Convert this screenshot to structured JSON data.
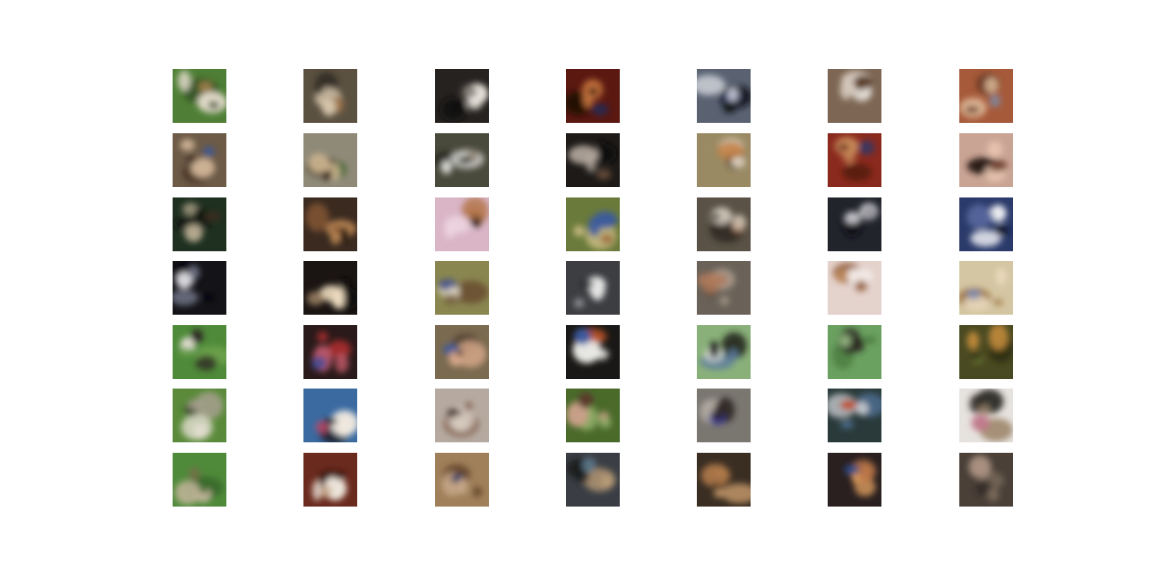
{
  "grid": {
    "rows": 7,
    "cols": 7,
    "samples": [
      [
        {
          "bg": "#4f7f36",
          "c1": "#e7ddd0",
          "c2": "#a9814d",
          "c3": "#2f4a24"
        },
        {
          "bg": "#5b5141",
          "c1": "#d8c7ad",
          "c2": "#9a7047",
          "c3": "#2d271f"
        },
        {
          "bg": "#262220",
          "c1": "#e8e4dc",
          "c2": "#6f6a62",
          "c3": "#0f0d0c"
        },
        {
          "bg": "#5a1810",
          "c1": "#c8773f",
          "c2": "#1e2c5a",
          "c3": "#1b0806"
        },
        {
          "bg": "#5a6272",
          "c1": "#d9dce2",
          "c2": "#2a3f7a",
          "c3": "#111318"
        },
        {
          "bg": "#7d6653",
          "c1": "#d5c9bd",
          "c2": "#5a3a22",
          "c3": "#e6e1da"
        },
        {
          "bg": "#a65a3a",
          "c1": "#e4c5a3",
          "c2": "#7a8fb0",
          "c3": "#6a3a22"
        }
      ],
      [
        {
          "bg": "#6d5a47",
          "c1": "#cfb597",
          "c2": "#3c5a9a",
          "c3": "#4a3626"
        },
        {
          "bg": "#8f8a78",
          "c1": "#d9bf98",
          "c2": "#4a6a3a",
          "c3": "#3a2b1e"
        },
        {
          "bg": "#4a4a3c",
          "c1": "#e9e9e6",
          "c2": "#8b8070",
          "c3": "#2a2a22"
        },
        {
          "bg": "#1d1a18",
          "c1": "#b6aaa0",
          "c2": "#6b4f3c",
          "c3": "#0c0b0a"
        },
        {
          "bg": "#9a8a64",
          "c1": "#c07a3a",
          "c2": "#3a2418",
          "c3": "#d8d0c0"
        },
        {
          "bg": "#8a2a1e",
          "c1": "#c88b5a",
          "c2": "#2a3a70",
          "c3": "#5a1a10"
        },
        {
          "bg": "#c9a394",
          "c1": "#eac6b2",
          "c2": "#6a3a2a",
          "c3": "#2a1a14"
        }
      ],
      [
        {
          "bg": "#1f3020",
          "c1": "#b4a88f",
          "c2": "#3a2a1e",
          "c3": "#0e160e"
        },
        {
          "bg": "#3a2a20",
          "c1": "#c08a56",
          "c2": "#1c1410",
          "c3": "#8a5a34"
        },
        {
          "bg": "#d9b5c6",
          "c1": "#f0d8e4",
          "c2": "#1c1410",
          "c3": "#b07040"
        },
        {
          "bg": "#6a7a3a",
          "c1": "#3a5aa0",
          "c2": "#a06a3a",
          "c3": "#d0c08a"
        },
        {
          "bg": "#5a5246",
          "c1": "#e2d8ca",
          "c2": "#7a4a2a",
          "c3": "#2a261e"
        },
        {
          "bg": "#22242c",
          "c1": "#d8d8dc",
          "c2": "#8a8a90",
          "c3": "#101118"
        },
        {
          "bg": "#2a3a6a",
          "c1": "#eceef2",
          "c2": "#0e1430",
          "c3": "#5a6aa0"
        }
      ],
      [
        {
          "bg": "#141418",
          "c1": "#7a7e92",
          "c2": "#e0e0e6",
          "c3": "#050508"
        },
        {
          "bg": "#1a1412",
          "c1": "#eddcbf",
          "c2": "#a88a6a",
          "c3": "#0c0908"
        },
        {
          "bg": "#8a8650",
          "c1": "#e4dcc8",
          "c2": "#3a4a8a",
          "c3": "#6a5030"
        },
        {
          "bg": "#3c3e42",
          "c1": "#e6e6e6",
          "c2": "#8a8c90",
          "c3": "#1a1c1e"
        },
        {
          "bg": "#6a6258",
          "c1": "#b07a5a",
          "c2": "#4a3a2e",
          "c3": "#a89a8c"
        },
        {
          "bg": "#e4d2cc",
          "c1": "#f2e8e4",
          "c2": "#c08a5a",
          "c3": "#9a6a4a"
        },
        {
          "bg": "#d4c6a2",
          "c1": "#ecdcc0",
          "c2": "#7a8ab0",
          "c3": "#a07a4a"
        }
      ],
      [
        {
          "bg": "#4f8a3a",
          "c1": "#2a2420",
          "c2": "#e4e0d6",
          "c3": "#6aa04a"
        },
        {
          "bg": "#2a1a1a",
          "c1": "#c05a6a",
          "c2": "#3a4a9a",
          "c3": "#a02a2a"
        },
        {
          "bg": "#7a6a50",
          "c1": "#d8a88a",
          "c2": "#3a5aa0",
          "c3": "#4a3a2a"
        },
        {
          "bg": "#1a1816",
          "c1": "#ecece8",
          "c2": "#3a5aa0",
          "c3": "#c0562a"
        },
        {
          "bg": "#8ab07a",
          "c1": "#1e1c1a",
          "c2": "#e8e8e4",
          "c3": "#5a7aa0"
        },
        {
          "bg": "#6aa060",
          "c1": "#2a2420",
          "c2": "#a0c08a",
          "c3": "#4a7a40"
        },
        {
          "bg": "#4a4a22",
          "c1": "#c08a3a",
          "c2": "#6a7a30",
          "c3": "#2a2a14"
        }
      ],
      [
        {
          "bg": "#5a8a3a",
          "c1": "#e6e0d4",
          "c2": "#2a2622",
          "c3": "#a8a090"
        },
        {
          "bg": "#3a6aa0",
          "c1": "#f0e8e0",
          "c2": "#c04a6a",
          "c3": "#1a1a1e"
        },
        {
          "bg": "#b6aaa0",
          "c1": "#d8ccc2",
          "c2": "#3a2620",
          "c3": "#8a6a5a"
        },
        {
          "bg": "#4a6a2a",
          "c1": "#c8a088",
          "c2": "#5a3a2a",
          "c3": "#90b06a"
        },
        {
          "bg": "#7a7670",
          "c1": "#2a2220",
          "c2": "#3a3aa0",
          "c3": "#b0aaa2"
        },
        {
          "bg": "#2a3a3a",
          "c1": "#c8ccd0",
          "c2": "#c04a2a",
          "c3": "#4a6a8a"
        },
        {
          "bg": "#e6e2de",
          "c1": "#2a2624",
          "c2": "#c07a8a",
          "c3": "#a08a70"
        }
      ],
      [
        {
          "bg": "#4f8a3a",
          "c1": "#c8b8a0",
          "c2": "#7a6a4a",
          "c3": "#3a6a2a"
        },
        {
          "bg": "#6a2a1e",
          "c1": "#f2eae0",
          "c2": "#c0a080",
          "c3": "#3a140e"
        },
        {
          "bg": "#a0805a",
          "c1": "#c8a88a",
          "c2": "#2a3a6a",
          "c3": "#6a4a2e"
        },
        {
          "bg": "#3a3e44",
          "c1": "#c0a07a",
          "c2": "#6a8aa0",
          "c3": "#1a1c1e"
        },
        {
          "bg": "#3a2e22",
          "c1": "#b07a4a",
          "c2": "#1c1610",
          "c3": "#d0a070"
        },
        {
          "bg": "#2a2020",
          "c1": "#c07a4a",
          "c2": "#2a4a8a",
          "c3": "#e0a060"
        },
        {
          "bg": "#4a4038",
          "c1": "#a89080",
          "c2": "#2a2420",
          "c3": "#7a6a5a"
        }
      ]
    ]
  }
}
